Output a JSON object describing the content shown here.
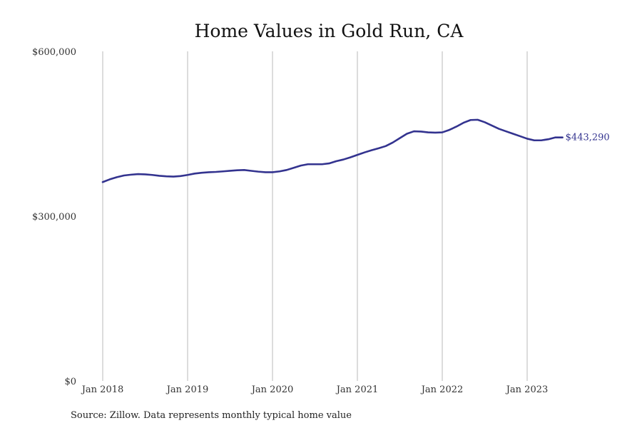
{
  "chart_data": {
    "type": "line",
    "title": "Home Values in Gold Run, CA",
    "xlabel": "",
    "ylabel": "",
    "x_ticks": [
      "Jan 2018",
      "Jan 2019",
      "Jan 2020",
      "Jan 2021",
      "Jan 2022",
      "Jan 2023"
    ],
    "y_ticks": [
      "$0",
      "$300,000",
      "$600,000"
    ],
    "ylim": [
      0,
      600000
    ],
    "xlim": [
      "2018-01",
      "2023-12"
    ],
    "grid": "vertical",
    "series": [
      {
        "color": "#33338f",
        "end_label": "$443,290",
        "x": [
          "2018-01",
          "2018-02",
          "2018-03",
          "2018-04",
          "2018-05",
          "2018-06",
          "2018-07",
          "2018-08",
          "2018-09",
          "2018-10",
          "2018-11",
          "2018-12",
          "2019-01",
          "2019-02",
          "2019-03",
          "2019-04",
          "2019-05",
          "2019-06",
          "2019-07",
          "2019-08",
          "2019-09",
          "2019-10",
          "2019-11",
          "2019-12",
          "2020-01",
          "2020-02",
          "2020-03",
          "2020-04",
          "2020-05",
          "2020-06",
          "2020-07",
          "2020-08",
          "2020-09",
          "2020-10",
          "2020-11",
          "2020-12",
          "2021-01",
          "2021-02",
          "2021-03",
          "2021-04",
          "2021-05",
          "2021-06",
          "2021-07",
          "2021-08",
          "2021-09",
          "2021-10",
          "2021-11",
          "2021-12",
          "2022-01",
          "2022-02",
          "2022-03",
          "2022-04",
          "2022-05",
          "2022-06",
          "2022-07",
          "2022-08",
          "2022-09",
          "2022-10",
          "2022-11",
          "2022-12",
          "2023-01",
          "2023-02",
          "2023-03",
          "2023-04",
          "2023-05",
          "2023-06"
        ],
        "values": [
          362000,
          367000,
          371000,
          374000,
          375500,
          376500,
          376000,
          375000,
          373500,
          372500,
          372000,
          373000,
          375000,
          377500,
          379000,
          380000,
          380500,
          381500,
          382500,
          383500,
          384000,
          382500,
          381000,
          380000,
          380000,
          381500,
          384000,
          388000,
          392000,
          394500,
          394500,
          394500,
          396000,
          400000,
          403000,
          407000,
          411500,
          416000,
          420000,
          423500,
          427500,
          434000,
          442000,
          450000,
          454500,
          454000,
          452500,
          452000,
          452500,
          457000,
          463000,
          470000,
          475000,
          475500,
          471000,
          465000,
          459000,
          454500,
          450000,
          445500,
          441000,
          438000,
          438000,
          440000,
          443290,
          443290
        ]
      }
    ]
  },
  "source_note": "Source: Zillow. Data represents monthly typical home value"
}
